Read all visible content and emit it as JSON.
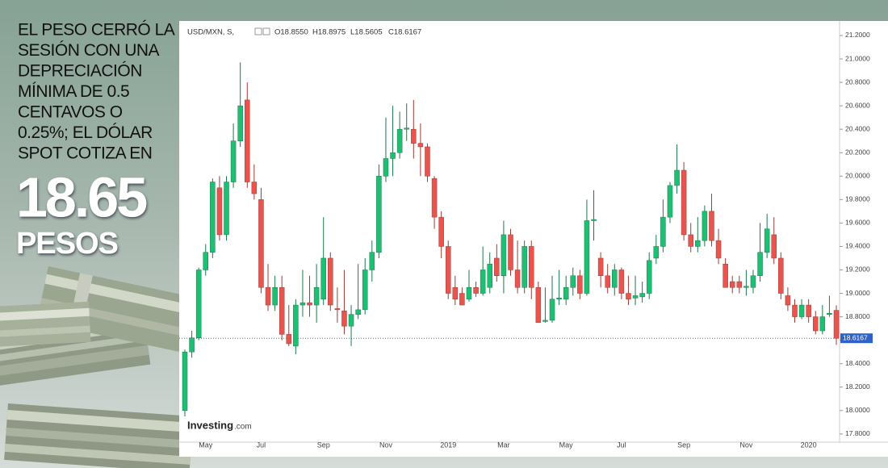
{
  "panel": {
    "headline": [
      "EL PESO CERRÓ LA",
      "SESIÓN CON UNA",
      "DEPRECIACIÓN",
      "MÍNIMA DE 0.5",
      "CENTAVOS O",
      "0.25%; EL DÓLAR",
      "SPOT COTIZA  EN"
    ],
    "price": "18.65",
    "unit": "PESOS"
  },
  "chart_data": {
    "type": "candlestick",
    "symbol_label": "USD/MXN, S,",
    "ohlc_header": [
      "O18.8550",
      "H18.8975",
      "L18.5605",
      "C18.6167"
    ],
    "brand": [
      "Investing",
      ".com"
    ],
    "up_color": "#1fbf73",
    "down_color": "#e8544e",
    "categories": [
      null,
      null,
      null,
      "May",
      null,
      null,
      null,
      null,
      null,
      null,
      null,
      "Jul",
      null,
      null,
      null,
      null,
      null,
      null,
      null,
      null,
      "Sep",
      null,
      null,
      null,
      null,
      null,
      null,
      null,
      null,
      "Nov",
      null,
      null,
      null,
      null,
      null,
      null,
      null,
      null,
      "2019",
      null,
      null,
      null,
      null,
      null,
      null,
      null,
      "Mar",
      null,
      null,
      null,
      null,
      null,
      null,
      null,
      null,
      "May",
      null,
      null,
      null,
      null,
      null,
      null,
      null,
      "Jul",
      null,
      null,
      null,
      null,
      null,
      null,
      null,
      null,
      "Sep",
      null,
      null,
      null,
      null,
      null,
      null,
      null,
      null,
      "Nov",
      null,
      null,
      null,
      null,
      null,
      null,
      null,
      null,
      "2020",
      null,
      null,
      null,
      null
    ],
    "ohlc": {
      "open": [
        18.0,
        18.5,
        18.62,
        19.2,
        19.35,
        19.9,
        19.5,
        19.95,
        20.3,
        20.65,
        19.95,
        19.8,
        19.05,
        18.9,
        19.05,
        18.65,
        18.55,
        18.9,
        18.92,
        18.9,
        18.95,
        19.3,
        18.87,
        18.85,
        18.72,
        18.82,
        18.86,
        19.2,
        19.35,
        20.0,
        20.15,
        20.2,
        20.4,
        20.4,
        20.28,
        20.25,
        19.98,
        19.65,
        19.4,
        19.05,
        19.0,
        18.95,
        19.05,
        19.0,
        19.05,
        19.3,
        19.15,
        19.5,
        19.2,
        19.05,
        19.4,
        19.05,
        18.76,
        18.77,
        18.95,
        18.95,
        19.05,
        19.15,
        19.0,
        19.62,
        19.3,
        19.15,
        19.05,
        19.2,
        19.0,
        18.96,
        18.97,
        19.0,
        19.3,
        19.4,
        19.65,
        19.92,
        20.05,
        19.5,
        19.4,
        19.45,
        19.7,
        19.45,
        19.25,
        19.1,
        19.1,
        19.05,
        19.05,
        19.15,
        19.35,
        19.5,
        19.3,
        18.98,
        18.9,
        18.8,
        18.9,
        18.8,
        18.68,
        18.82,
        18.855
      ],
      "high": [
        18.52,
        18.68,
        19.22,
        19.42,
        19.98,
        20.0,
        20.0,
        20.45,
        20.97,
        20.8,
        20.1,
        19.9,
        19.25,
        19.15,
        19.15,
        18.9,
        18.95,
        19.2,
        19.15,
        19.25,
        19.65,
        19.35,
        19.05,
        19.2,
        18.9,
        19.25,
        19.3,
        19.45,
        20.1,
        20.5,
        20.6,
        20.55,
        20.62,
        20.65,
        20.45,
        20.28,
        20.0,
        19.7,
        19.45,
        19.15,
        19.05,
        19.2,
        19.1,
        19.4,
        19.35,
        19.42,
        19.62,
        19.55,
        19.45,
        19.45,
        19.45,
        19.1,
        19.05,
        19.15,
        19.2,
        19.15,
        19.22,
        19.2,
        19.8,
        19.88,
        19.35,
        19.25,
        19.25,
        19.22,
        19.15,
        19.15,
        19.1,
        19.35,
        19.5,
        19.8,
        19.95,
        20.27,
        20.12,
        19.6,
        19.65,
        19.75,
        19.85,
        19.55,
        19.3,
        19.15,
        19.15,
        19.2,
        19.2,
        19.6,
        19.68,
        19.65,
        19.35,
        19.05,
        18.95,
        18.95,
        18.95,
        18.85,
        18.9,
        18.98,
        18.8975
      ],
      "low": [
        17.95,
        18.45,
        18.6,
        19.15,
        19.3,
        19.45,
        19.45,
        19.9,
        20.25,
        19.9,
        19.8,
        19.0,
        18.85,
        18.85,
        18.6,
        18.55,
        18.48,
        18.8,
        18.8,
        18.75,
        18.9,
        18.85,
        18.75,
        18.65,
        18.55,
        18.78,
        18.82,
        19.1,
        19.3,
        19.95,
        20.0,
        20.15,
        20.3,
        20.15,
        20.0,
        19.95,
        19.55,
        19.3,
        18.95,
        18.9,
        18.9,
        18.93,
        18.97,
        18.98,
        19.0,
        19.1,
        19.0,
        19.15,
        19.0,
        19.0,
        18.95,
        18.75,
        18.75,
        18.75,
        18.9,
        18.9,
        18.98,
        18.95,
        18.98,
        19.45,
        19.05,
        19.0,
        18.98,
        18.95,
        18.9,
        18.9,
        18.92,
        18.95,
        19.25,
        19.35,
        19.6,
        19.85,
        19.45,
        19.35,
        19.35,
        19.4,
        19.4,
        19.25,
        19.05,
        19.0,
        19.0,
        18.98,
        19.0,
        19.1,
        19.3,
        19.25,
        18.95,
        18.85,
        18.75,
        18.78,
        18.75,
        18.65,
        18.65,
        18.8,
        18.5605
      ],
      "close": [
        18.5,
        18.62,
        19.2,
        19.35,
        19.95,
        19.5,
        19.95,
        20.3,
        20.6,
        19.95,
        19.85,
        19.05,
        18.9,
        19.05,
        18.65,
        18.57,
        18.9,
        18.92,
        18.9,
        19.05,
        19.3,
        18.9,
        18.86,
        18.72,
        18.82,
        18.86,
        19.2,
        19.35,
        20.0,
        20.15,
        20.2,
        20.4,
        20.41,
        20.28,
        20.25,
        20.0,
        19.65,
        19.4,
        19.0,
        18.95,
        18.9,
        19.05,
        19.0,
        19.2,
        19.25,
        19.15,
        19.5,
        19.2,
        19.05,
        19.4,
        19.05,
        18.75,
        18.77,
        18.95,
        18.96,
        19.05,
        19.15,
        19.0,
        19.62,
        19.63,
        19.15,
        19.05,
        19.2,
        19.0,
        18.95,
        18.98,
        19.0,
        19.28,
        19.4,
        19.65,
        19.92,
        20.05,
        19.5,
        19.4,
        19.45,
        19.7,
        19.45,
        19.3,
        19.05,
        19.05,
        19.05,
        19.06,
        19.15,
        19.35,
        19.55,
        19.3,
        19.0,
        18.9,
        18.8,
        18.9,
        18.8,
        18.68,
        18.8,
        18.83,
        18.6167
      ]
    },
    "last_price": {
      "value": 18.6167,
      "label": "18.6167"
    },
    "ylim": [
      17.73,
      21.31
    ],
    "yticks": [
      {
        "value": 17.8,
        "label": "17.8000"
      },
      {
        "value": 18.0,
        "label": "18.0000"
      },
      {
        "value": 18.2,
        "label": "18.2000"
      },
      {
        "value": 18.4,
        "label": "18.4000"
      },
      {
        "value": 18.6,
        "label": "18.6000"
      },
      {
        "value": 18.8,
        "label": "18.8000"
      },
      {
        "value": 19.0,
        "label": "19.0000"
      },
      {
        "value": 19.2,
        "label": "19.2000"
      },
      {
        "value": 19.4,
        "label": "19.4000"
      },
      {
        "value": 19.6,
        "label": "19.6000"
      },
      {
        "value": 19.8,
        "label": "19.8000"
      },
      {
        "value": 20.0,
        "label": "20.0000"
      },
      {
        "value": 20.2,
        "label": "20.2000"
      },
      {
        "value": 20.4,
        "label": "20.4000"
      },
      {
        "value": 20.6,
        "label": "20.6000"
      },
      {
        "value": 20.8,
        "label": "20.8000"
      },
      {
        "value": 21.0,
        "label": "21.0000"
      },
      {
        "value": 21.2,
        "label": "21.2000"
      }
    ]
  }
}
